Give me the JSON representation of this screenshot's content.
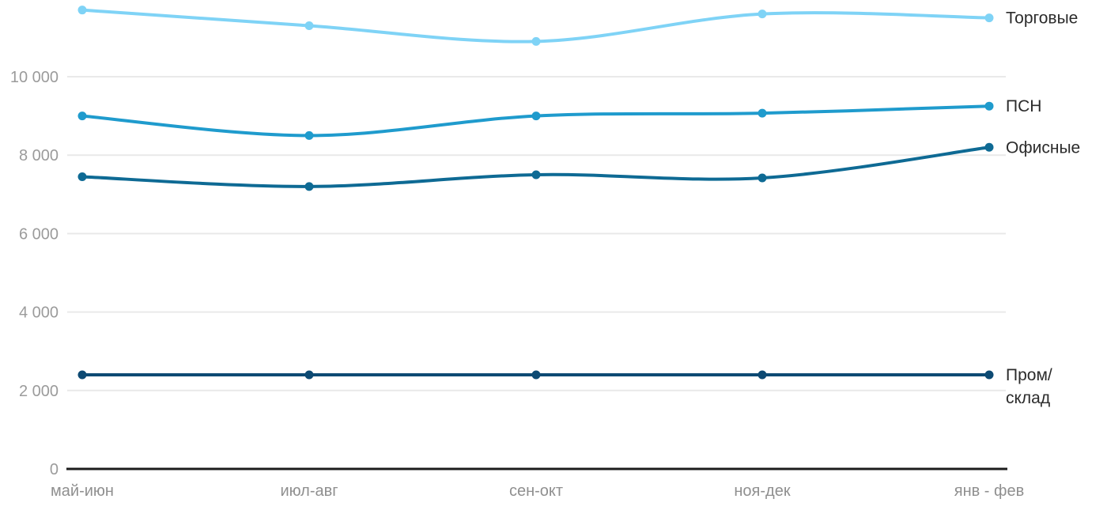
{
  "chart_data": {
    "type": "line",
    "title": "",
    "xlabel": "",
    "ylabel": "",
    "categories": [
      "май-июн",
      "июл-авг",
      "сен-окт",
      "ноя-дек",
      "янв - фев"
    ],
    "series": [
      {
        "name": "Торговые",
        "values": [
          11700,
          11300,
          10900,
          11600,
          11500
        ],
        "color": "#7FD3F6",
        "label_lines": [
          "Торговые"
        ]
      },
      {
        "name": "ПСН",
        "values": [
          9000,
          8500,
          9000,
          9070,
          9250
        ],
        "color": "#1F9BCD",
        "label_lines": [
          "ПСН"
        ]
      },
      {
        "name": "Офисные",
        "values": [
          7450,
          7200,
          7500,
          7420,
          8200
        ],
        "color": "#0E6A94",
        "label_lines": [
          "Офисные"
        ]
      },
      {
        "name": "Пром/склад",
        "values": [
          2400,
          2400,
          2400,
          2400,
          2400
        ],
        "color": "#0D4A73",
        "label_lines": [
          "Пром/",
          "склад"
        ]
      }
    ],
    "yticks": [
      {
        "value": 0,
        "label": "0"
      },
      {
        "value": 2000,
        "label": "2 000"
      },
      {
        "value": 4000,
        "label": "4 000"
      },
      {
        "value": 6000,
        "label": "6 000"
      },
      {
        "value": 8000,
        "label": "8 000"
      },
      {
        "value": 10000,
        "label": "10 000"
      }
    ],
    "ylim": [
      0,
      11960
    ],
    "grid": "horizontal",
    "legend_position": "right-of-line-end",
    "marker": "circle",
    "curve": "smooth"
  },
  "colors": {
    "background": "#ffffff",
    "grid_line": "#e9e9e9",
    "axis_line": "#1c1c1c",
    "y_tick_label": "#9b9b9b",
    "x_tick_label": "#8f8f8f",
    "series_label": "#2b2b2b"
  }
}
